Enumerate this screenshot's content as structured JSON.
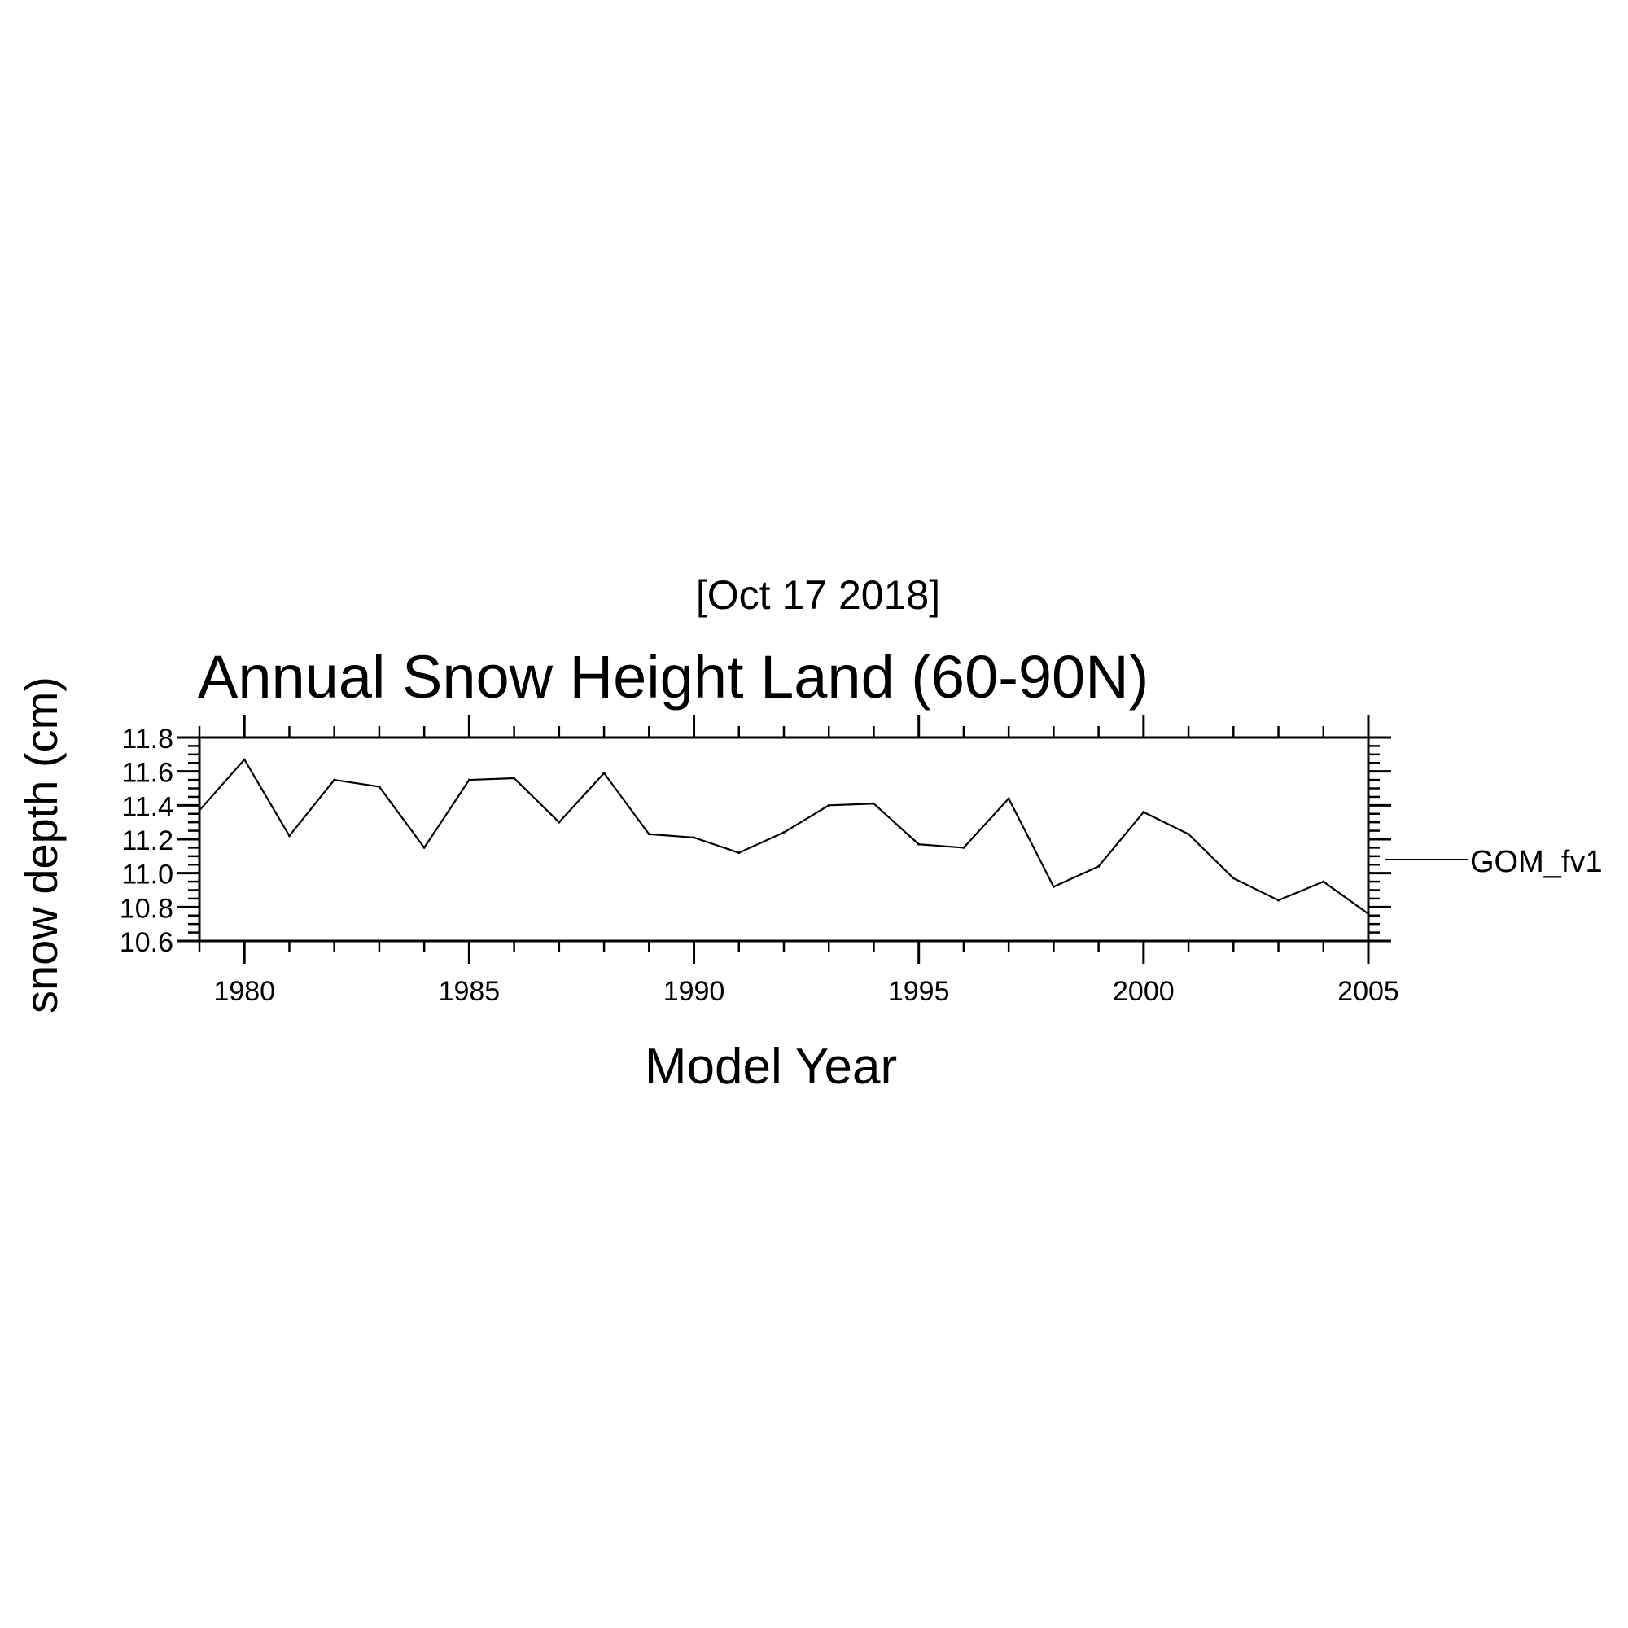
{
  "subtitle": "[Oct 17 2018]",
  "chart_data": {
    "type": "line",
    "title": "Annual Snow Height Land (60-90N)",
    "xlabel": "Model Year",
    "ylabel": "snow depth (cm)",
    "xlim": [
      1979,
      2005
    ],
    "ylim": [
      10.6,
      11.8
    ],
    "x_ticks": [
      1980,
      1985,
      1990,
      1995,
      2000,
      2005
    ],
    "x_tick_labels": [
      "1980",
      "1985",
      "1990",
      "1995",
      "2000",
      "2005"
    ],
    "y_ticks": [
      10.6,
      10.8,
      11.0,
      11.2,
      11.4,
      11.6,
      11.8
    ],
    "y_tick_labels": [
      "10.6",
      "10.8",
      "11.0",
      "11.2",
      "11.4",
      "11.6",
      "11.8"
    ],
    "legend_position": "right",
    "grid": false,
    "series": [
      {
        "name": "GOM_fv1",
        "color": "#000000",
        "x": [
          1979,
          1980,
          1981,
          1982,
          1983,
          1984,
          1985,
          1986,
          1987,
          1988,
          1989,
          1990,
          1991,
          1992,
          1993,
          1994,
          1995,
          1996,
          1997,
          1998,
          1999,
          2000,
          2001,
          2002,
          2003,
          2004,
          2005
        ],
        "y": [
          11.37,
          11.67,
          11.22,
          11.55,
          11.51,
          11.15,
          11.55,
          11.56,
          11.3,
          11.59,
          11.23,
          11.21,
          11.12,
          11.24,
          11.4,
          11.41,
          11.17,
          11.15,
          11.44,
          10.92,
          11.04,
          11.36,
          11.23,
          10.97,
          10.84,
          10.95,
          10.76
        ]
      }
    ]
  }
}
